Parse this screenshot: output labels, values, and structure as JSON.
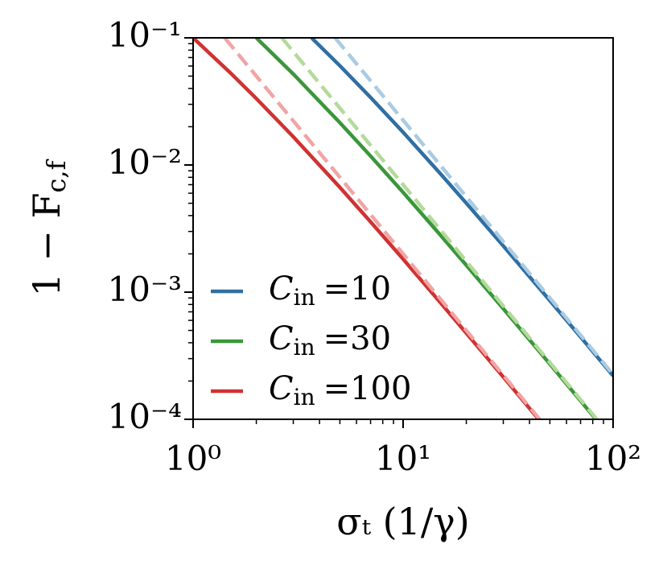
{
  "chart_data": {
    "type": "line",
    "xlabel": "σₜ (1/γ)",
    "ylabel": {
      "main": "1 − F",
      "sub": "c,f"
    },
    "legend_symbol": "C",
    "legend_subscript": "in",
    "log_scale": true,
    "legend": "lower left",
    "xlim": [
      1,
      100
    ],
    "ylim": [
      0.0001,
      0.1
    ],
    "xticks": [
      {
        "value": 1,
        "label": "10⁰"
      },
      {
        "value": 10,
        "label": "10¹"
      },
      {
        "value": 100,
        "label": "10²"
      }
    ],
    "yticks": [
      {
        "value": 0.0001,
        "label": "10⁻⁴"
      },
      {
        "value": 0.001,
        "label": "10⁻³"
      },
      {
        "value": 0.01,
        "label": "10⁻²"
      },
      {
        "value": 0.1,
        "label": "10⁻¹"
      }
    ],
    "series": [
      {
        "name": "=10",
        "color": "#2f6fa3",
        "dashed": false,
        "x": [
          3.67,
          5,
          7,
          10,
          15,
          20,
          30,
          50,
          70,
          100
        ],
        "values": [
          0.0998,
          0.0603,
          0.034,
          0.0181,
          0.00859,
          0.00501,
          0.00231,
          0.000858,
          0.000444,
          0.00022
        ]
      },
      {
        "name": "=30",
        "color": "#3a963a",
        "dashed": false,
        "x": [
          2,
          3,
          5,
          7,
          10,
          15,
          20,
          30,
          50,
          82
        ],
        "values": [
          0.1,
          0.0519,
          0.0215,
          0.01176,
          0.00609,
          0.00283,
          0.00163,
          0.000741,
          0.000272,
          0.000102
        ]
      },
      {
        "name": "=100",
        "color": "#d03232",
        "dashed": false,
        "x": [
          1,
          1.5,
          2,
          3,
          5,
          7,
          10,
          15,
          20,
          30,
          44
        ],
        "values": [
          0.1,
          0.0533,
          0.0333,
          0.01667,
          0.00667,
          0.00357,
          0.00182,
          0.000833,
          0.000476,
          0.000215,
          0.000101
        ]
      },
      {
        "color": "#a9cbe3",
        "dashed": true,
        "x": [
          4.743,
          100
        ],
        "values": [
          0.1,
          0.000225
        ]
      },
      {
        "color": "#b3da9a",
        "dashed": true,
        "x": [
          2.646,
          83.67
        ],
        "values": [
          0.1,
          0.0001
        ]
      },
      {
        "color": "#f2a4a4",
        "dashed": true,
        "x": [
          1.414,
          44.72
        ],
        "values": [
          0.1,
          0.0001
        ]
      }
    ]
  }
}
